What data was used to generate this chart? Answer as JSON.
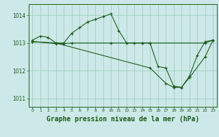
{
  "background_color": "#cde8e8",
  "grid_color": "#9ecfbe",
  "line_color": "#1a5c1a",
  "marker": "+",
  "title": "Graphe pression niveau de la mer (hPa)",
  "title_fontsize": 7,
  "xlim": [
    -0.5,
    23.5
  ],
  "ylim": [
    1010.7,
    1014.4
  ],
  "yticks": [
    1011,
    1012,
    1013,
    1014
  ],
  "xticks": [
    0,
    1,
    2,
    3,
    4,
    5,
    6,
    7,
    8,
    9,
    10,
    11,
    12,
    13,
    14,
    15,
    16,
    17,
    18,
    19,
    20,
    21,
    22,
    23
  ],
  "series1_x": [
    0,
    1,
    2,
    3,
    4,
    5,
    6,
    7,
    8,
    9,
    10,
    11,
    12,
    13,
    14,
    15,
    16,
    17,
    18,
    19,
    20,
    21,
    22,
    23
  ],
  "series1_y": [
    1013.1,
    1013.25,
    1013.2,
    1013.0,
    1013.0,
    1013.35,
    1013.55,
    1013.75,
    1013.85,
    1013.95,
    1014.05,
    1013.45,
    1013.0,
    1013.0,
    1013.0,
    1013.0,
    1012.15,
    1012.1,
    1011.45,
    1011.4,
    1011.8,
    1012.55,
    1013.05,
    1013.1
  ],
  "series2_x": [
    0,
    3,
    4,
    5,
    10,
    14,
    15,
    22,
    23
  ],
  "series2_y": [
    1013.05,
    1012.98,
    1012.98,
    1013.0,
    1013.0,
    1013.0,
    1013.0,
    1013.0,
    1013.1
  ],
  "series3_x": [
    0,
    3,
    15,
    17,
    18,
    19,
    20,
    22,
    23
  ],
  "series3_y": [
    1013.05,
    1013.0,
    1012.1,
    1011.55,
    1011.4,
    1011.4,
    1011.75,
    1012.5,
    1013.1
  ]
}
